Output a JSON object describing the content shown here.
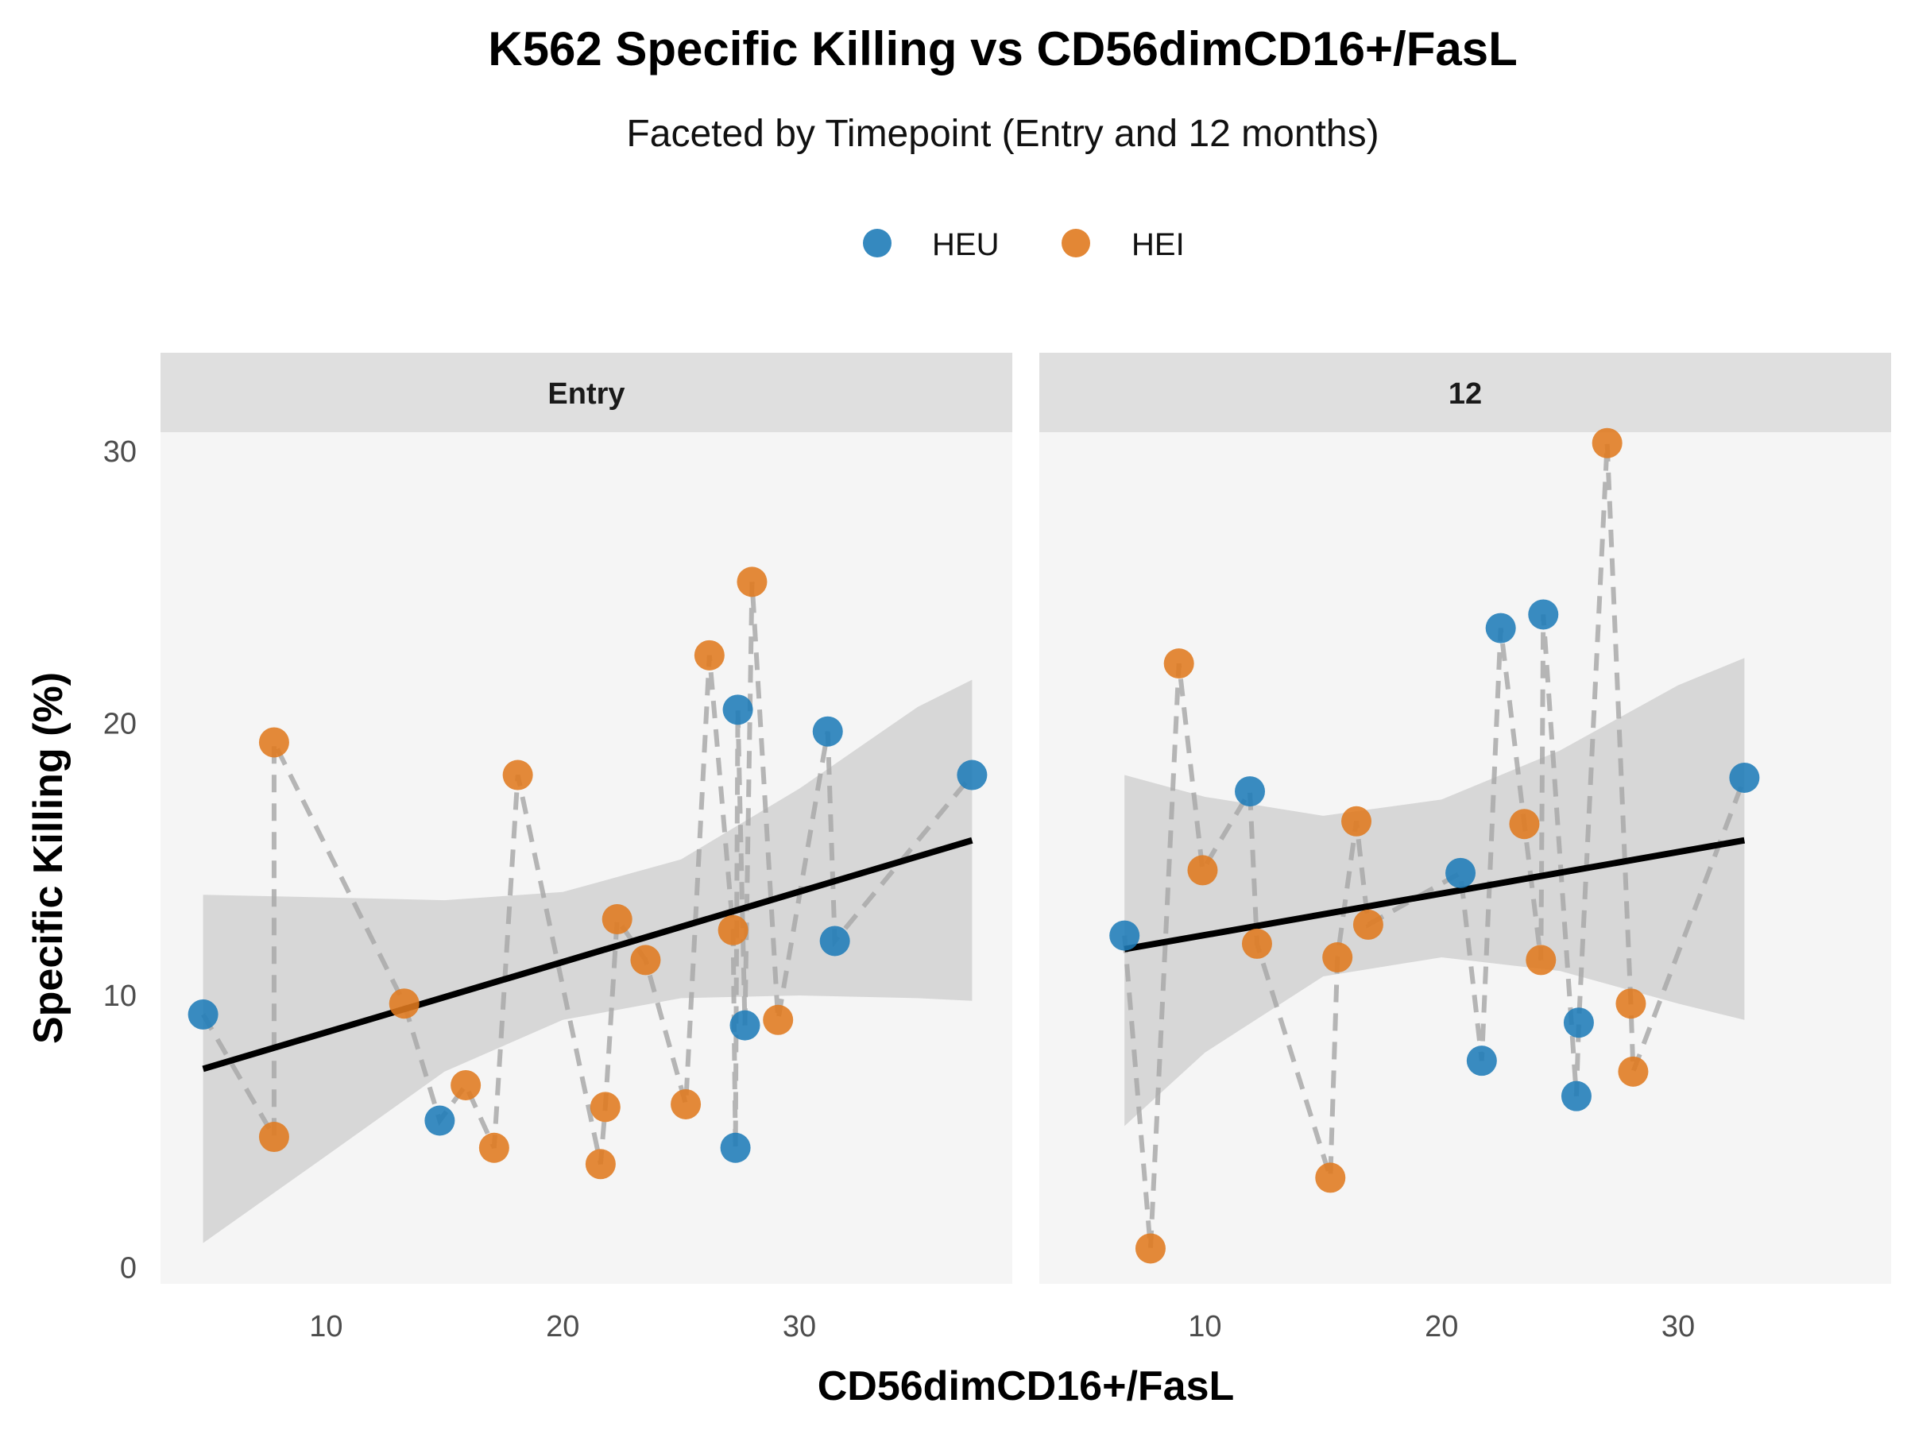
{
  "chart_data": {
    "type": "scatter",
    "title": "K562 Specific Killing vs CD56dimCD16+/FasL",
    "subtitle": "Faceted by Timepoint (Entry and 12 months)",
    "xlabel": "CD56dimCD16+/FasL",
    "ylabel": "Specific Killing (%)",
    "xlim": [
      3,
      39
    ],
    "ylim": [
      -0.6,
      30.7
    ],
    "x_ticks": [
      10,
      20,
      30
    ],
    "y_ticks": [
      0,
      10,
      20,
      30
    ],
    "grid": false,
    "legend_position": "top",
    "series": [
      {
        "name": "HEU",
        "color": "#1f7cb8"
      },
      {
        "name": "HEI",
        "color": "#e07a1f"
      }
    ],
    "facets": [
      {
        "label": "Entry",
        "points": [
          {
            "x": 4.8,
            "y": 9.3,
            "group": "HEU"
          },
          {
            "x": 7.8,
            "y": 19.3,
            "group": "HEI"
          },
          {
            "x": 7.8,
            "y": 4.8,
            "group": "HEI"
          },
          {
            "x": 13.3,
            "y": 9.7,
            "group": "HEI"
          },
          {
            "x": 14.8,
            "y": 5.4,
            "group": "HEU"
          },
          {
            "x": 15.9,
            "y": 6.7,
            "group": "HEI"
          },
          {
            "x": 17.1,
            "y": 4.4,
            "group": "HEI"
          },
          {
            "x": 18.1,
            "y": 18.1,
            "group": "HEI"
          },
          {
            "x": 21.6,
            "y": 3.8,
            "group": "HEI"
          },
          {
            "x": 21.8,
            "y": 5.9,
            "group": "HEI"
          },
          {
            "x": 22.3,
            "y": 12.8,
            "group": "HEI"
          },
          {
            "x": 23.5,
            "y": 11.3,
            "group": "HEI"
          },
          {
            "x": 25.2,
            "y": 6.0,
            "group": "HEI"
          },
          {
            "x": 26.2,
            "y": 22.5,
            "group": "HEI"
          },
          {
            "x": 27.2,
            "y": 12.4,
            "group": "HEI"
          },
          {
            "x": 27.4,
            "y": 20.5,
            "group": "HEU"
          },
          {
            "x": 27.3,
            "y": 4.4,
            "group": "HEU"
          },
          {
            "x": 27.7,
            "y": 8.9,
            "group": "HEU"
          },
          {
            "x": 28.0,
            "y": 25.2,
            "group": "HEI"
          },
          {
            "x": 29.1,
            "y": 9.1,
            "group": "HEI"
          },
          {
            "x": 31.2,
            "y": 19.7,
            "group": "HEU"
          },
          {
            "x": 31.5,
            "y": 12.0,
            "group": "HEU"
          },
          {
            "x": 37.3,
            "y": 18.1,
            "group": "HEU"
          }
        ],
        "trend": {
          "x": [
            4.8,
            37.3
          ],
          "y": [
            7.3,
            15.7
          ]
        },
        "band": {
          "x": [
            4.8,
            10,
            15,
            20,
            25,
            30,
            35,
            37.3
          ],
          "lower": [
            0.9,
            4.1,
            7.2,
            9.1,
            9.9,
            10.0,
            9.9,
            9.8
          ],
          "upper": [
            13.7,
            13.6,
            13.5,
            13.8,
            15.0,
            17.6,
            20.6,
            21.6
          ]
        },
        "path": [
          [
            4.8,
            9.3
          ],
          [
            7.8,
            4.8
          ],
          [
            7.8,
            19.3
          ],
          [
            13.3,
            9.7
          ],
          [
            14.8,
            5.4
          ],
          [
            15.9,
            6.7
          ],
          [
            17.1,
            4.4
          ],
          [
            18.1,
            18.1
          ],
          [
            21.6,
            3.8
          ],
          [
            21.8,
            5.9
          ],
          [
            22.3,
            12.8
          ],
          [
            23.5,
            11.3
          ],
          [
            25.2,
            6.0
          ],
          [
            26.2,
            22.5
          ],
          [
            27.2,
            12.4
          ],
          [
            27.3,
            4.4
          ],
          [
            27.4,
            20.5
          ],
          [
            27.7,
            8.9
          ],
          [
            28.0,
            25.2
          ],
          [
            29.1,
            9.1
          ],
          [
            31.2,
            19.7
          ],
          [
            31.5,
            12.0
          ],
          [
            37.3,
            18.1
          ]
        ]
      },
      {
        "label": "12",
        "points": [
          {
            "x": 6.6,
            "y": 12.2,
            "group": "HEU"
          },
          {
            "x": 7.7,
            "y": 0.7,
            "group": "HEI"
          },
          {
            "x": 8.9,
            "y": 22.2,
            "group": "HEI"
          },
          {
            "x": 9.9,
            "y": 14.6,
            "group": "HEI"
          },
          {
            "x": 11.9,
            "y": 17.5,
            "group": "HEU"
          },
          {
            "x": 12.2,
            "y": 11.9,
            "group": "HEI"
          },
          {
            "x": 15.3,
            "y": 3.3,
            "group": "HEI"
          },
          {
            "x": 15.6,
            "y": 11.4,
            "group": "HEI"
          },
          {
            "x": 16.4,
            "y": 16.4,
            "group": "HEI"
          },
          {
            "x": 16.9,
            "y": 12.6,
            "group": "HEI"
          },
          {
            "x": 20.8,
            "y": 14.5,
            "group": "HEU"
          },
          {
            "x": 21.7,
            "y": 7.6,
            "group": "HEU"
          },
          {
            "x": 22.5,
            "y": 23.5,
            "group": "HEU"
          },
          {
            "x": 23.5,
            "y": 16.3,
            "group": "HEI"
          },
          {
            "x": 24.2,
            "y": 11.3,
            "group": "HEI"
          },
          {
            "x": 24.3,
            "y": 24.0,
            "group": "HEU"
          },
          {
            "x": 25.7,
            "y": 6.3,
            "group": "HEU"
          },
          {
            "x": 25.8,
            "y": 9.0,
            "group": "HEU"
          },
          {
            "x": 27.0,
            "y": 30.3,
            "group": "HEI"
          },
          {
            "x": 28.0,
            "y": 9.7,
            "group": "HEI"
          },
          {
            "x": 28.1,
            "y": 7.2,
            "group": "HEI"
          },
          {
            "x": 32.8,
            "y": 18.0,
            "group": "HEU"
          }
        ],
        "trend": {
          "x": [
            6.6,
            32.8
          ],
          "y": [
            11.7,
            15.7
          ]
        },
        "band": {
          "x": [
            6.6,
            10,
            15,
            20,
            25,
            30,
            32.8
          ],
          "lower": [
            5.2,
            7.9,
            10.7,
            11.4,
            10.9,
            9.7,
            9.1
          ],
          "upper": [
            18.1,
            17.3,
            16.6,
            17.2,
            19.0,
            21.4,
            22.4
          ]
        },
        "path": [
          [
            6.6,
            12.2
          ],
          [
            7.7,
            0.7
          ],
          [
            8.9,
            22.2
          ],
          [
            9.9,
            14.6
          ],
          [
            11.9,
            17.5
          ],
          [
            12.2,
            11.9
          ],
          [
            15.3,
            3.3
          ],
          [
            15.6,
            11.4
          ],
          [
            16.4,
            16.4
          ],
          [
            16.9,
            12.6
          ],
          [
            20.8,
            14.5
          ],
          [
            21.7,
            7.6
          ],
          [
            22.5,
            23.5
          ],
          [
            23.5,
            16.3
          ],
          [
            24.2,
            11.3
          ],
          [
            24.3,
            24.0
          ],
          [
            25.7,
            6.3
          ],
          [
            25.8,
            9.0
          ],
          [
            27.0,
            30.3
          ],
          [
            28.0,
            9.7
          ],
          [
            28.1,
            7.2
          ],
          [
            32.8,
            18.0
          ]
        ]
      }
    ]
  }
}
